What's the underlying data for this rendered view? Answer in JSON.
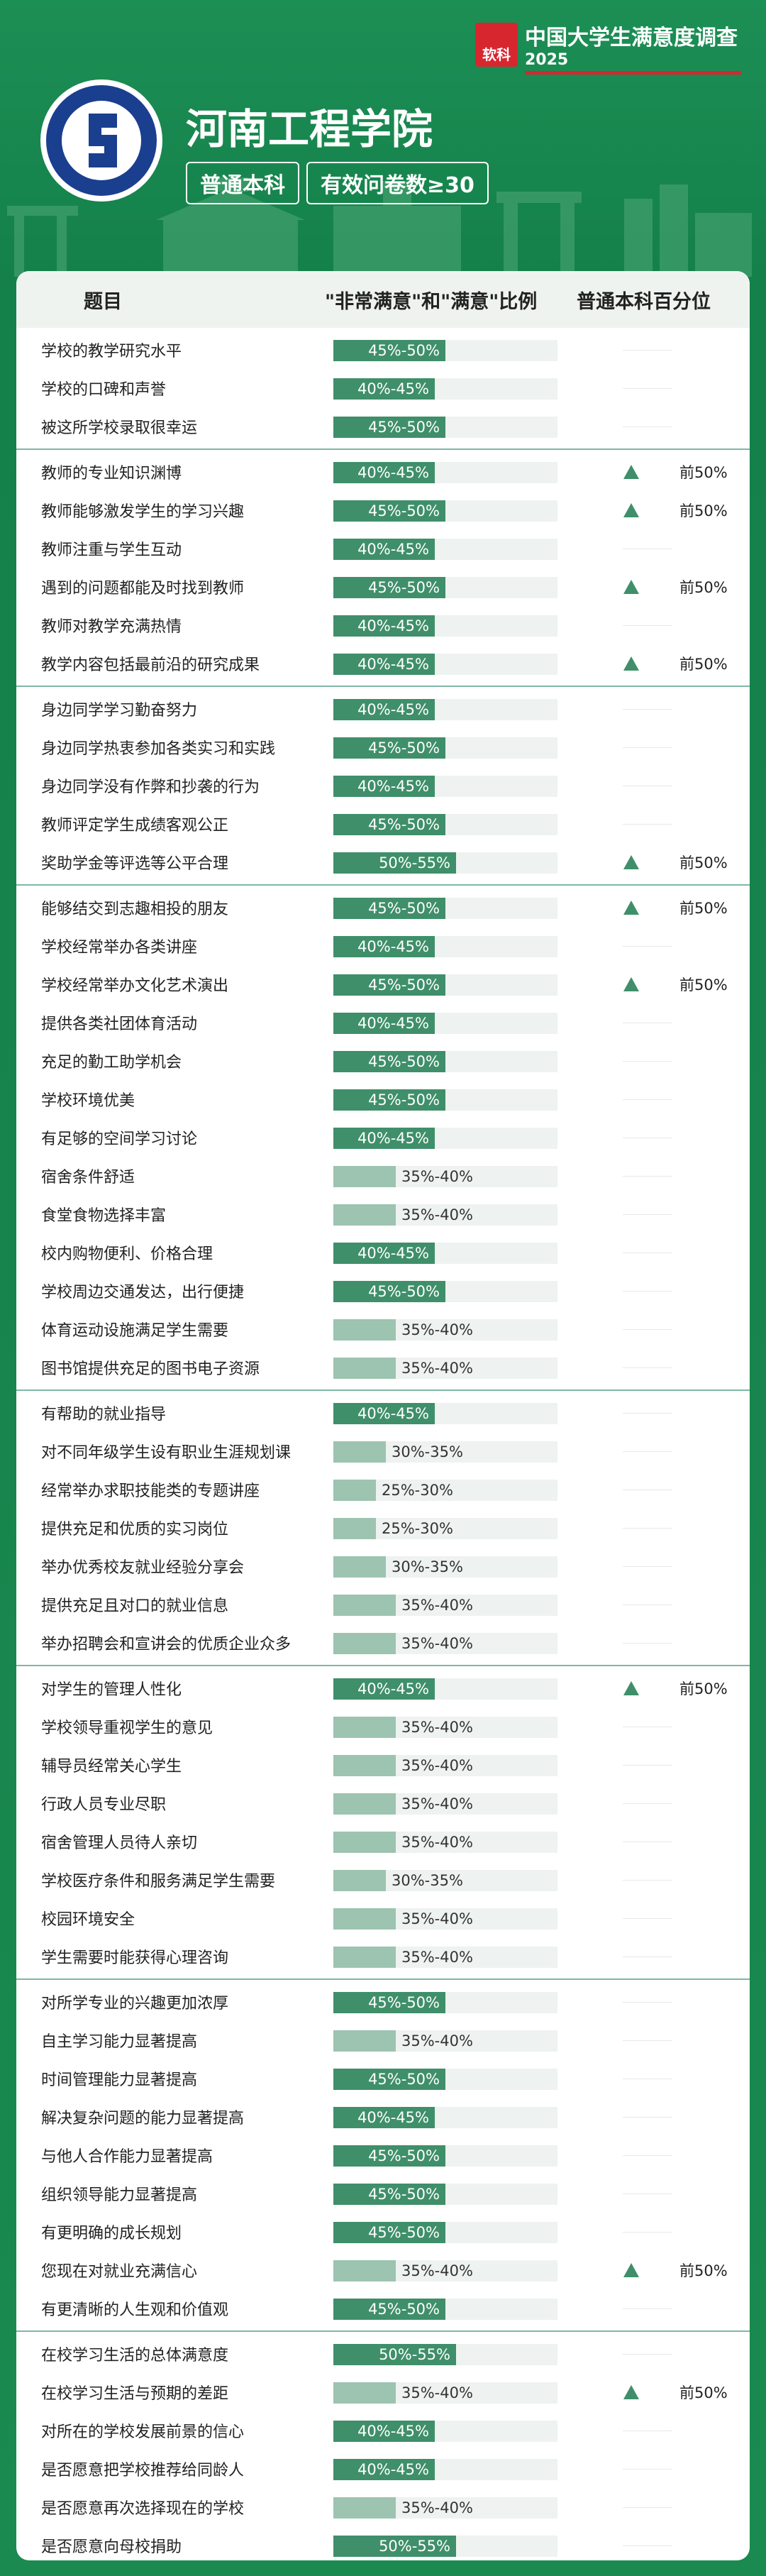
{
  "header": {
    "brand": "软科",
    "survey": "中国大学生满意度调查",
    "year": "2025",
    "school": "河南工程学院",
    "tags": [
      "普通本科",
      "有效问卷数≥30"
    ]
  },
  "table": {
    "columns": [
      "题目",
      "\"非常满意\"和\"满意\"比例",
      "普通本科百分位"
    ],
    "groups": [
      [
        {
          "item": "学校的教学研究水平",
          "ratio": "45%-50%"
        },
        {
          "item": "学校的口碑和声誉",
          "ratio": "40%-45%"
        },
        {
          "item": "被这所学校录取很幸运",
          "ratio": "45%-50%"
        }
      ],
      [
        {
          "item": "教师的专业知识渊博",
          "ratio": "40%-45%",
          "percentile": "前50%"
        },
        {
          "item": "教师能够激发学生的学习兴趣",
          "ratio": "45%-50%",
          "percentile": "前50%"
        },
        {
          "item": "教师注重与学生互动",
          "ratio": "40%-45%"
        },
        {
          "item": "遇到的问题都能及时找到教师",
          "ratio": "45%-50%",
          "percentile": "前50%"
        },
        {
          "item": "教师对教学充满热情",
          "ratio": "40%-45%"
        },
        {
          "item": "教学内容包括最前沿的研究成果",
          "ratio": "40%-45%",
          "percentile": "前50%"
        }
      ],
      [
        {
          "item": "身边同学学习勤奋努力",
          "ratio": "40%-45%"
        },
        {
          "item": "身边同学热衷参加各类实习和实践",
          "ratio": "45%-50%"
        },
        {
          "item": "身边同学没有作弊和抄袭的行为",
          "ratio": "40%-45%"
        },
        {
          "item": "教师评定学生成绩客观公正",
          "ratio": "45%-50%"
        },
        {
          "item": "奖助学金等评选等公平合理",
          "ratio": "50%-55%",
          "percentile": "前50%"
        }
      ],
      [
        {
          "item": "能够结交到志趣相投的朋友",
          "ratio": "45%-50%",
          "percentile": "前50%"
        },
        {
          "item": "学校经常举办各类讲座",
          "ratio": "40%-45%"
        },
        {
          "item": "学校经常举办文化艺术演出",
          "ratio": "45%-50%",
          "percentile": "前50%"
        },
        {
          "item": "提供各类社团体育活动",
          "ratio": "40%-45%"
        },
        {
          "item": "充足的勤工助学机会",
          "ratio": "45%-50%"
        },
        {
          "item": "学校环境优美",
          "ratio": "45%-50%"
        },
        {
          "item": "有足够的空间学习讨论",
          "ratio": "40%-45%"
        },
        {
          "item": "宿舍条件舒适",
          "ratio": "35%-40%"
        },
        {
          "item": "食堂食物选择丰富",
          "ratio": "35%-40%"
        },
        {
          "item": "校内购物便利、价格合理",
          "ratio": "40%-45%"
        },
        {
          "item": "学校周边交通发达，出行便捷",
          "ratio": "45%-50%"
        },
        {
          "item": "体育运动设施满足学生需要",
          "ratio": "35%-40%"
        },
        {
          "item": "图书馆提供充足的图书电子资源",
          "ratio": "35%-40%"
        }
      ],
      [
        {
          "item": "有帮助的就业指导",
          "ratio": "40%-45%"
        },
        {
          "item": "对不同年级学生设有职业生涯规划课",
          "ratio": "30%-35%"
        },
        {
          "item": "经常举办求职技能类的专题讲座",
          "ratio": "25%-30%"
        },
        {
          "item": "提供充足和优质的实习岗位",
          "ratio": "25%-30%"
        },
        {
          "item": "举办优秀校友就业经验分享会",
          "ratio": "30%-35%"
        },
        {
          "item": "提供充足且对口的就业信息",
          "ratio": "35%-40%"
        },
        {
          "item": "举办招聘会和宣讲会的优质企业众多",
          "ratio": "35%-40%"
        }
      ],
      [
        {
          "item": "对学生的管理人性化",
          "ratio": "40%-45%",
          "percentile": "前50%"
        },
        {
          "item": "学校领导重视学生的意见",
          "ratio": "35%-40%"
        },
        {
          "item": "辅导员经常关心学生",
          "ratio": "35%-40%"
        },
        {
          "item": "行政人员专业尽职",
          "ratio": "35%-40%"
        },
        {
          "item": "宿舍管理人员待人亲切",
          "ratio": "35%-40%"
        },
        {
          "item": "学校医疗条件和服务满足学生需要",
          "ratio": "30%-35%"
        },
        {
          "item": "校园环境安全",
          "ratio": "35%-40%"
        },
        {
          "item": "学生需要时能获得心理咨询",
          "ratio": "35%-40%"
        }
      ],
      [
        {
          "item": "对所学专业的兴趣更加浓厚",
          "ratio": "45%-50%"
        },
        {
          "item": "自主学习能力显著提高",
          "ratio": "35%-40%"
        },
        {
          "item": "时间管理能力显著提高",
          "ratio": "45%-50%"
        },
        {
          "item": "解决复杂问题的能力显著提高",
          "ratio": "40%-45%"
        },
        {
          "item": "与他人合作能力显著提高",
          "ratio": "45%-50%"
        },
        {
          "item": "组织领导能力显著提高",
          "ratio": "45%-50%"
        },
        {
          "item": "有更明确的成长规划",
          "ratio": "45%-50%"
        },
        {
          "item": "您现在对就业充满信心",
          "ratio": "35%-40%",
          "percentile": "前50%"
        },
        {
          "item": "有更清晰的人生观和价值观",
          "ratio": "45%-50%"
        }
      ],
      [
        {
          "item": "在校学习生活的总体满意度",
          "ratio": "50%-55%"
        },
        {
          "item": "在校学习生活与预期的差距",
          "ratio": "35%-40%",
          "percentile": "前50%"
        },
        {
          "item": "对所在的学校发展前景的信心",
          "ratio": "40%-45%"
        },
        {
          "item": "是否愿意把学校推荐给同龄人",
          "ratio": "40%-45%"
        },
        {
          "item": "是否愿意再次选择现在的学校",
          "ratio": "35%-40%"
        },
        {
          "item": "是否愿意向母校捐助",
          "ratio": "50%-55%"
        }
      ]
    ]
  }
}
